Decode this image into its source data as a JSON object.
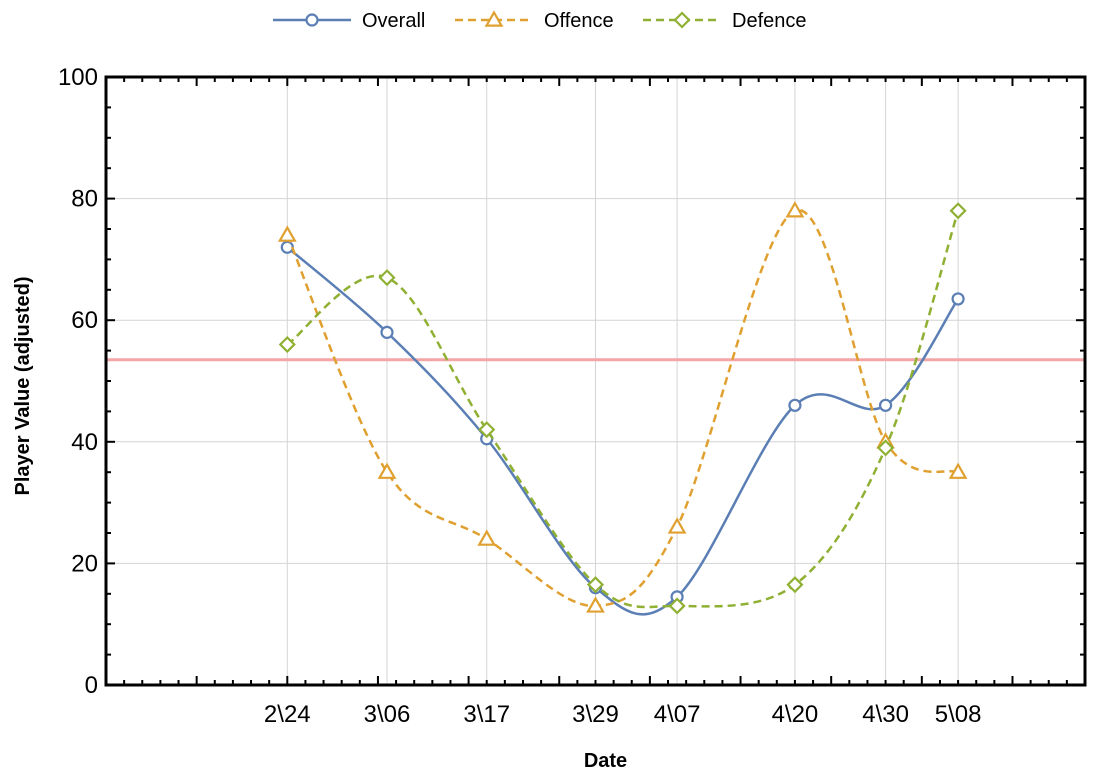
{
  "chart_data": {
    "type": "line",
    "xlabel": "Date",
    "ylabel": "Player Value (adjusted)",
    "ylim": [
      0,
      100
    ],
    "y_ticks": [
      0,
      20,
      40,
      60,
      80,
      100
    ],
    "x_domain": [
      "2\\04",
      "5\\22"
    ],
    "categories": [
      "2\\24",
      "3\\06",
      "3\\17",
      "3\\29",
      "4\\07",
      "4\\20",
      "4\\30",
      "5\\08"
    ],
    "x_days": [
      0,
      11,
      22,
      34,
      43,
      56,
      66,
      74
    ],
    "grid": true,
    "legend_position": "top-center",
    "reference_line": {
      "y": 53.5,
      "color": "#f4a6a6"
    },
    "series": [
      {
        "name": "Overall",
        "values": [
          72,
          58,
          40.5,
          16,
          14.5,
          46,
          46,
          63.5
        ],
        "color": "#5b7fb5",
        "marker": "circle",
        "dashed": false
      },
      {
        "name": "Offence",
        "values": [
          74,
          35,
          24,
          13,
          26,
          78,
          40,
          35
        ],
        "color": "#e0a030",
        "marker": "triangle",
        "dashed": true
      },
      {
        "name": "Defence",
        "values": [
          56,
          67,
          42,
          16.5,
          13,
          16.5,
          39,
          78
        ],
        "color": "#8fb032",
        "marker": "diamond",
        "dashed": true
      }
    ]
  }
}
